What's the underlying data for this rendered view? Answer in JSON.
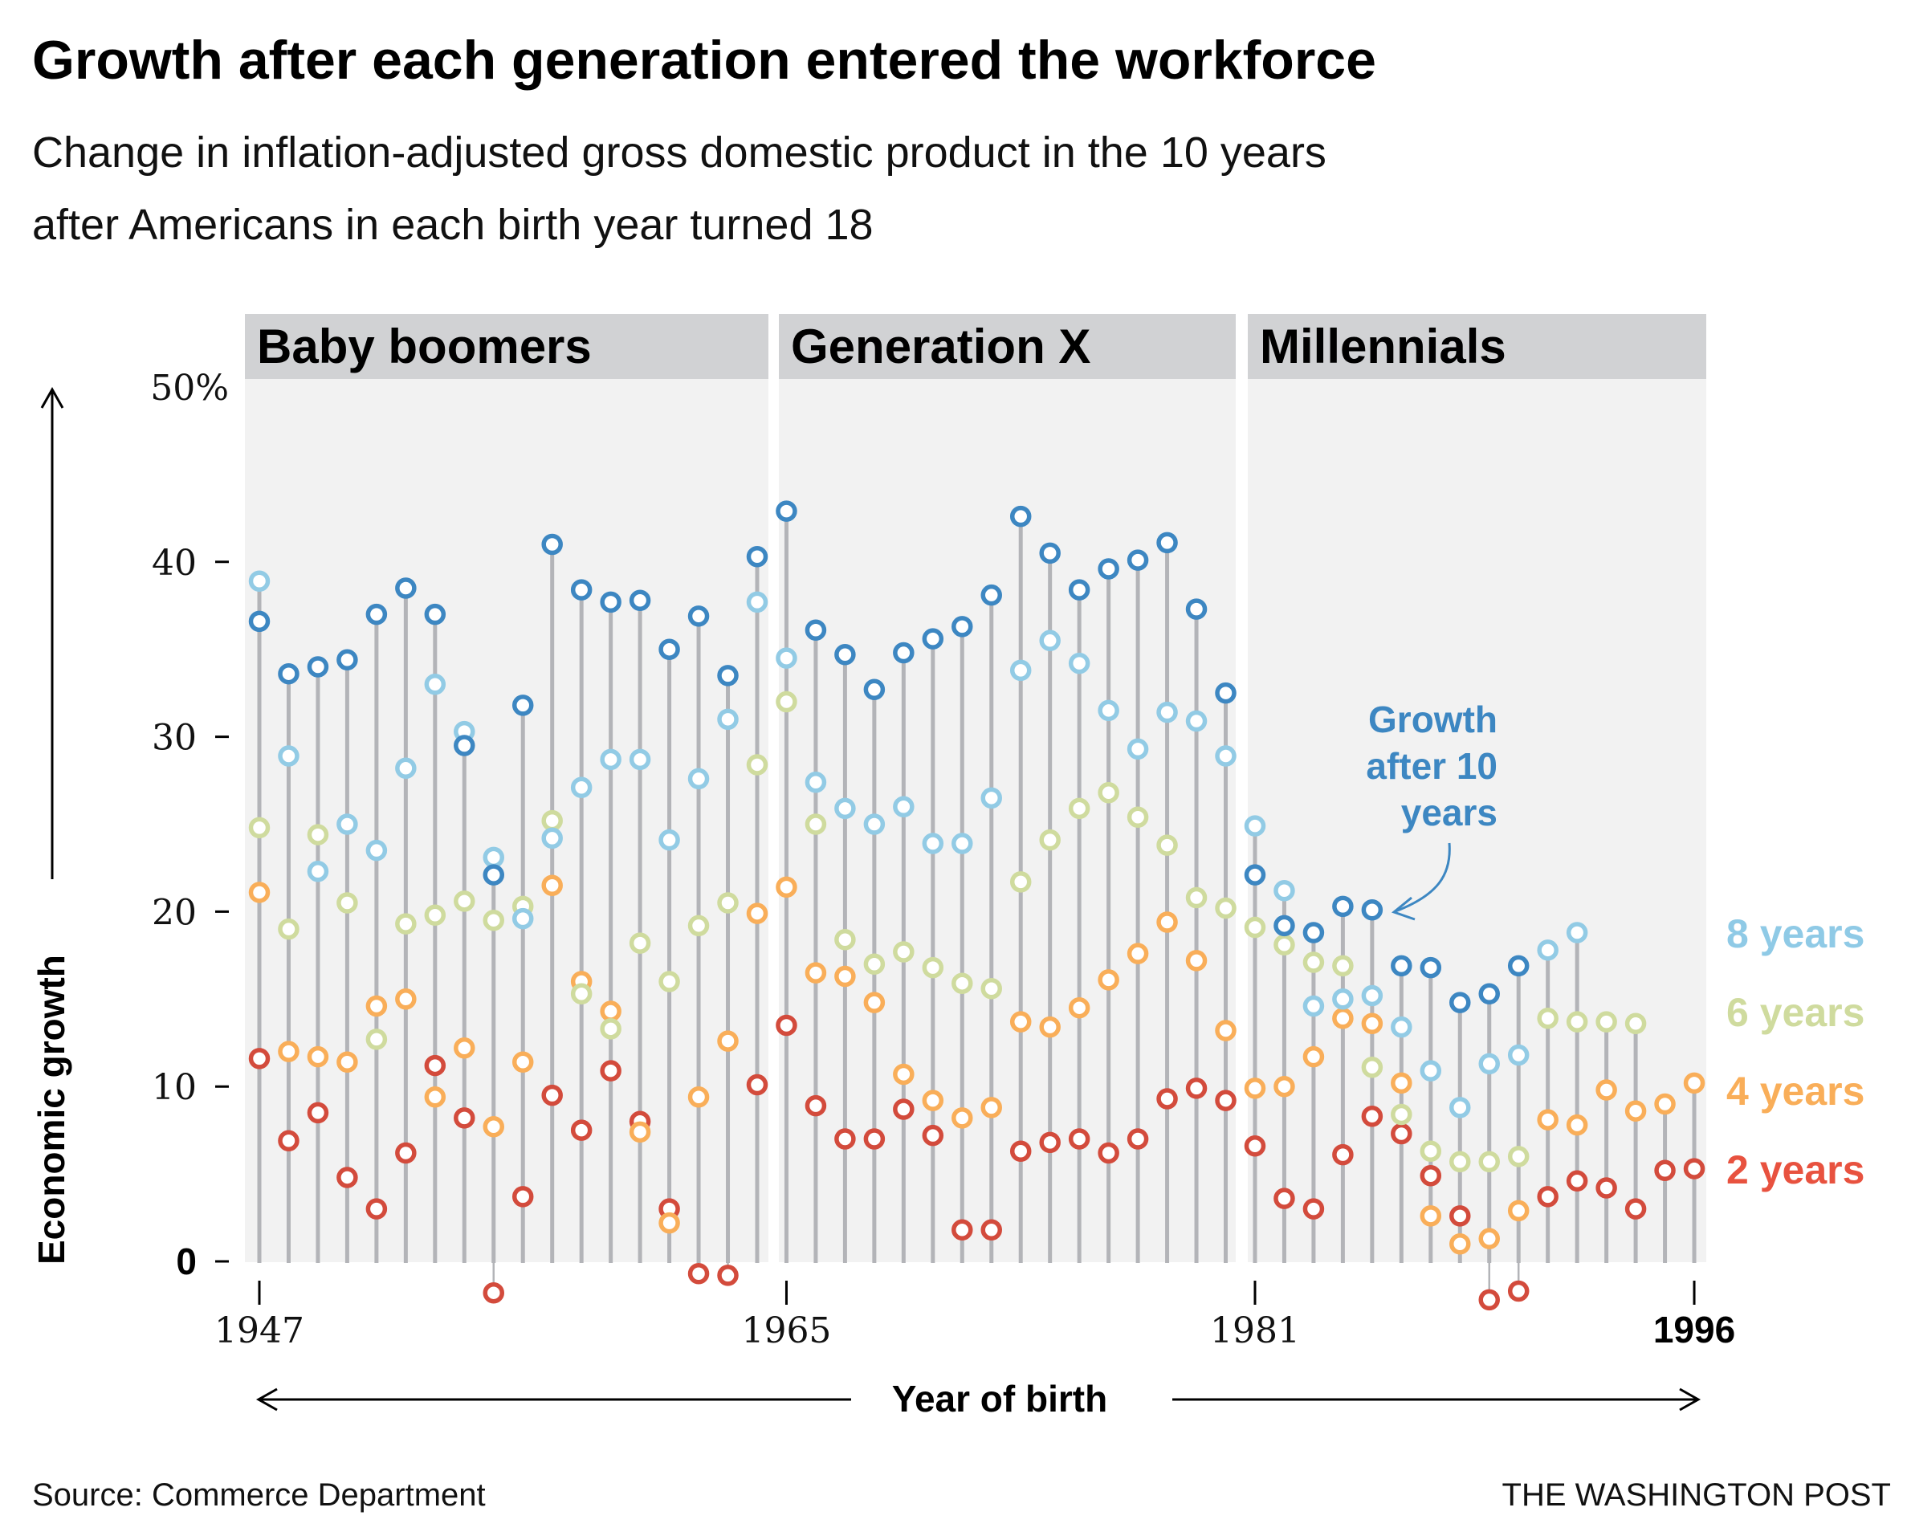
{
  "header": {
    "title": "Growth after each generation entered the workforce",
    "subtitle_line1": "Change in inflation-adjusted gross domestic product in the 10 years",
    "subtitle_line2": "after Americans in each birth year turned 18"
  },
  "footer": {
    "source": "Source: Commerce Department",
    "credit": "THE WASHINGTON POST"
  },
  "chart_data": {
    "type": "scatter",
    "subtype": "dot-plot-with-stems",
    "title": "Growth after each generation entered the workforce",
    "subtitle": "Change in inflation-adjusted gross domestic product in the 10 years after Americans in each birth year turned 18",
    "xlabel": "Year of birth",
    "ylabel": "Economic growth",
    "xlim": [
      1947,
      1996
    ],
    "ylim": [
      0,
      50
    ],
    "x_ticks": [
      {
        "value": 1947,
        "label": "1947",
        "bold": false
      },
      {
        "value": 1965,
        "label": "1965",
        "bold": false
      },
      {
        "value": 1981,
        "label": "1981",
        "bold": false
      },
      {
        "value": 1996,
        "label": "1996",
        "bold": true
      }
    ],
    "y_ticks": [
      {
        "value": 50,
        "label": "50%"
      },
      {
        "value": 40,
        "label": "40"
      },
      {
        "value": 30,
        "label": "30"
      },
      {
        "value": 20,
        "label": "20"
      },
      {
        "value": 10,
        "label": "10"
      },
      {
        "value": 0,
        "label": "0"
      }
    ],
    "grid": false,
    "generations": [
      {
        "name": "Baby boomers",
        "start": 1947,
        "end": 1964
      },
      {
        "name": "Generation X",
        "start": 1965,
        "end": 1980
      },
      {
        "name": "Millennials",
        "start": 1981,
        "end": 1996
      }
    ],
    "legend_placement": "right",
    "series": [
      {
        "name": "10 years",
        "label": "Growth after 10 years",
        "color": "#3d87c2"
      },
      {
        "name": "8 years",
        "label": "8 years",
        "color": "#92cbe5"
      },
      {
        "name": "6 years",
        "label": "6 years",
        "color": "#cfdb9e"
      },
      {
        "name": "4 years",
        "label": "4 years",
        "color": "#f9ae59"
      },
      {
        "name": "2 years",
        "label": "2 years",
        "color": "#d34b3c"
      }
    ],
    "legend_text_colors": {
      "8 years": "#8fcae6",
      "6 years": "#cfdb9e",
      "4 years": "#f9ae59",
      "2 years": "#e8523f"
    },
    "annotation": {
      "text_lines": [
        "Growth",
        "after 10",
        "years"
      ],
      "points_to_year": 1985,
      "color": "#3d87c2"
    },
    "x": [
      1947,
      1948,
      1949,
      1950,
      1951,
      1952,
      1953,
      1954,
      1955,
      1956,
      1957,
      1958,
      1959,
      1960,
      1961,
      1962,
      1963,
      1964,
      1965,
      1966,
      1967,
      1968,
      1969,
      1970,
      1971,
      1972,
      1973,
      1974,
      1975,
      1976,
      1977,
      1978,
      1979,
      1980,
      1981,
      1982,
      1983,
      1984,
      1985,
      1986,
      1987,
      1988,
      1989,
      1990,
      1991,
      1992,
      1993,
      1994,
      1995,
      1996
    ],
    "values": {
      "10 years": [
        36.6,
        33.6,
        34.0,
        34.4,
        37.0,
        38.5,
        37.0,
        29.5,
        22.1,
        31.8,
        41.0,
        38.4,
        37.7,
        37.8,
        35.0,
        36.9,
        33.5,
        40.3,
        42.9,
        36.1,
        34.7,
        32.7,
        34.8,
        35.6,
        36.3,
        38.1,
        42.6,
        40.5,
        38.4,
        39.6,
        40.1,
        41.1,
        37.3,
        32.5,
        22.1,
        19.2,
        18.8,
        20.3,
        20.1,
        16.9,
        16.8,
        14.8,
        15.3,
        16.9,
        null,
        null,
        null,
        null,
        null,
        null
      ],
      "8 years": [
        38.9,
        28.9,
        22.3,
        25.0,
        23.5,
        28.2,
        33.0,
        30.3,
        23.1,
        19.6,
        24.2,
        27.1,
        28.7,
        28.7,
        24.1,
        27.6,
        31.0,
        37.7,
        34.5,
        27.4,
        25.9,
        25.0,
        26.0,
        23.9,
        23.9,
        26.5,
        33.8,
        35.5,
        34.2,
        31.5,
        29.3,
        31.4,
        30.9,
        28.9,
        24.9,
        21.2,
        14.6,
        15.0,
        15.2,
        13.4,
        10.9,
        8.8,
        11.3,
        11.8,
        17.8,
        18.8,
        null,
        null,
        null,
        null
      ],
      "6 years": [
        24.8,
        19.0,
        24.4,
        20.5,
        12.7,
        19.3,
        19.8,
        20.6,
        19.5,
        20.3,
        25.2,
        15.3,
        13.3,
        18.2,
        16.0,
        19.2,
        20.5,
        28.4,
        32.0,
        25.0,
        18.4,
        17.0,
        17.7,
        16.8,
        15.9,
        15.6,
        21.7,
        24.1,
        25.9,
        26.8,
        25.4,
        23.8,
        20.8,
        20.2,
        19.1,
        18.1,
        17.1,
        16.9,
        11.1,
        8.4,
        6.3,
        5.7,
        5.7,
        6.0,
        13.9,
        13.7,
        13.7,
        13.6,
        null,
        null
      ],
      "4 years": [
        21.1,
        12.0,
        11.7,
        11.4,
        14.6,
        15.0,
        9.4,
        12.2,
        7.7,
        11.4,
        21.5,
        16.0,
        14.3,
        7.4,
        2.2,
        9.4,
        12.6,
        19.9,
        21.4,
        16.5,
        16.3,
        14.8,
        10.7,
        9.2,
        8.2,
        8.8,
        13.7,
        13.4,
        14.5,
        16.1,
        17.6,
        19.4,
        17.2,
        13.2,
        9.9,
        10.0,
        11.7,
        13.9,
        13.6,
        10.2,
        2.6,
        1.0,
        1.3,
        2.9,
        8.1,
        7.8,
        9.8,
        8.6,
        9.0,
        10.2
      ],
      "2 years": [
        11.6,
        6.9,
        8.5,
        4.8,
        3.0,
        6.2,
        11.2,
        8.2,
        -1.8,
        3.7,
        9.5,
        7.5,
        10.9,
        8.0,
        3.0,
        -0.7,
        -0.8,
        10.1,
        13.5,
        8.9,
        7.0,
        7.0,
        8.7,
        7.2,
        1.8,
        1.8,
        6.3,
        6.8,
        7.0,
        6.2,
        7.0,
        9.3,
        9.9,
        9.2,
        6.6,
        3.6,
        3.0,
        6.1,
        8.3,
        7.3,
        4.9,
        2.6,
        -2.2,
        -1.7,
        3.7,
        4.6,
        4.2,
        3.0,
        5.2,
        5.3
      ]
    }
  }
}
